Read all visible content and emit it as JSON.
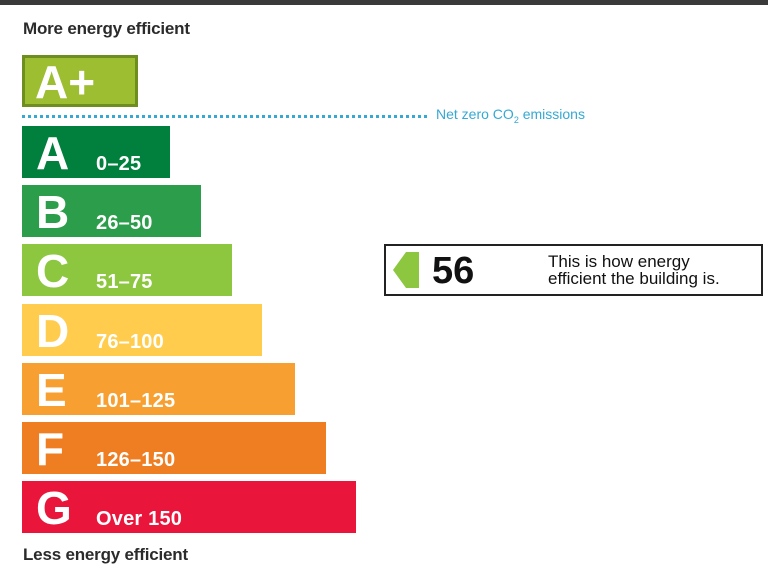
{
  "chart_data": {
    "type": "bar",
    "title": "",
    "caption_top": "More energy efficient",
    "caption_bottom": "Less energy efficient",
    "net_zero_label": "Net zero CO",
    "net_zero_subscript": "2",
    "net_zero_suffix": " emissions",
    "bands": [
      {
        "letter": "A+",
        "range": "",
        "color": "#9cbe30"
      },
      {
        "letter": "A",
        "range": "0–25",
        "color": "#007f3d"
      },
      {
        "letter": "B",
        "range": "26–50",
        "color": "#2c9e4b"
      },
      {
        "letter": "C",
        "range": "51–75",
        "color": "#8dc63f"
      },
      {
        "letter": "D",
        "range": "76–100",
        "color": "#ffcc4d"
      },
      {
        "letter": "E",
        "range": "101–125",
        "color": "#f7a031"
      },
      {
        "letter": "F",
        "range": "126–150",
        "color": "#ef7d22"
      },
      {
        "letter": "G",
        "range": "Over 150",
        "color": "#e9153b"
      }
    ],
    "rating": {
      "value": "56",
      "band": "C",
      "color": "#8dc63f",
      "description_line1": "This is how energy",
      "description_line2": "efficient the building is."
    }
  }
}
